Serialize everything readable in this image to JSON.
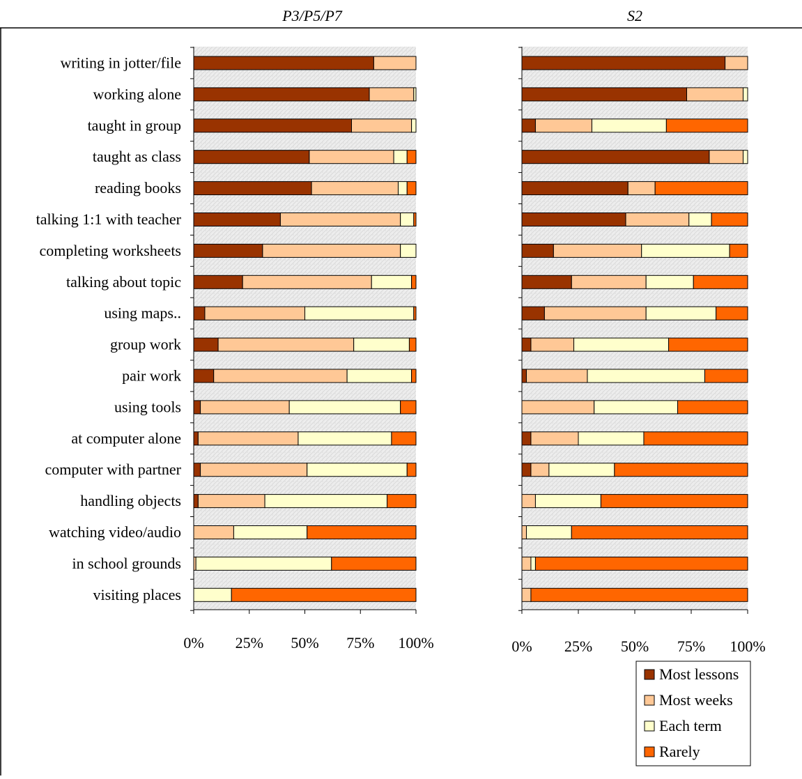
{
  "chart_data": {
    "type": "bar",
    "orientation": "horizontal",
    "stacked": "percent",
    "grid": false,
    "legend_position": "bottom-right",
    "categories": [
      "writing in jotter/file",
      "working alone",
      "taught in group",
      "taught as class",
      "reading books",
      "talking 1:1 with teacher",
      "completing worksheets",
      "talking about topic",
      "using maps..",
      "group work",
      "pair work",
      "using tools",
      "at computer alone",
      "computer with partner",
      "handling objects",
      "watching video/audio",
      "in school grounds",
      "visiting places"
    ],
    "xticks": [
      "0%",
      "25%",
      "50%",
      "75%",
      "100%"
    ],
    "xlim": [
      0,
      100
    ],
    "series_colors": {
      "Most lessons": "#993300",
      "Most weeks": "#FFC896",
      "Each term": "#FFFFCC",
      "Rarely": "#FF6600"
    },
    "panels": [
      {
        "title": "P3/P5/P7",
        "series": [
          {
            "name": "Most lessons",
            "values": [
              81,
              79,
              71,
              52,
              53,
              39,
              31,
              22,
              5,
              11,
              9,
              3,
              2,
              3,
              2,
              0,
              0,
              0
            ]
          },
          {
            "name": "Most weeks",
            "values": [
              19,
              20,
              27,
              38,
              39,
              54,
              62,
              58,
              45,
              61,
              60,
              40,
              45,
              48,
              30,
              18,
              1,
              0
            ]
          },
          {
            "name": "Each term",
            "values": [
              0,
              1,
              2,
              6,
              4,
              6,
              7,
              18,
              49,
              25,
              29,
              50,
              42,
              45,
              55,
              33,
              61,
              17
            ]
          },
          {
            "name": "Rarely",
            "values": [
              0,
              0,
              0,
              4,
              4,
              1,
              0,
              2,
              1,
              3,
              2,
              7,
              11,
              4,
              13,
              49,
              38,
              83
            ]
          }
        ]
      },
      {
        "title": "S2",
        "series": [
          {
            "name": "Most lessons",
            "values": [
              90,
              73,
              6,
              83,
              47,
              46,
              14,
              22,
              10,
              4,
              2,
              0,
              4,
              4,
              0,
              0,
              0,
              0
            ]
          },
          {
            "name": "Most weeks",
            "values": [
              10,
              25,
              25,
              15,
              12,
              28,
              39,
              33,
              45,
              19,
              27,
              32,
              21,
              8,
              6,
              2,
              4,
              4
            ]
          },
          {
            "name": "Each term",
            "values": [
              0,
              2,
              33,
              2,
              0,
              10,
              39,
              21,
              31,
              42,
              52,
              37,
              29,
              29,
              29,
              20,
              2,
              0
            ]
          },
          {
            "name": "Rarely",
            "values": [
              0,
              0,
              36,
              0,
              41,
              16,
              8,
              24,
              14,
              35,
              19,
              31,
              46,
              59,
              65,
              78,
              94,
              96
            ]
          }
        ]
      }
    ]
  }
}
